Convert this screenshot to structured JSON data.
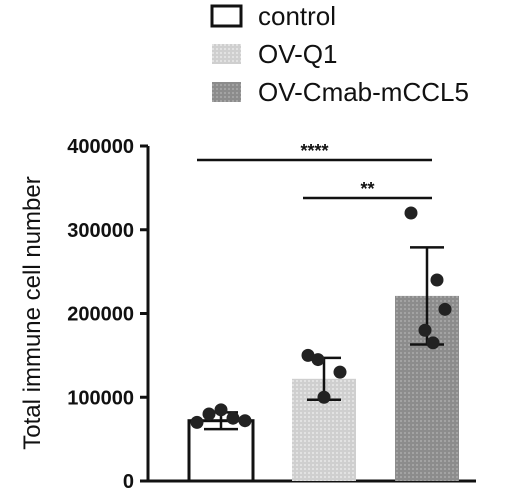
{
  "chart_data": {
    "type": "bar",
    "title": "",
    "xlabel": "",
    "ylabel": "Total immune cell number",
    "ylim": [
      0,
      400000
    ],
    "yticks": [
      0,
      100000,
      200000,
      300000,
      400000
    ],
    "ytick_labels": [
      "0",
      "100000",
      "200000",
      "300000",
      "400000"
    ],
    "grid": false,
    "legend_position": "top",
    "categories": [
      "control",
      "OV-Q1",
      "OV-Cmab-mCCL5"
    ],
    "series": [
      {
        "name": "Total immune cell number",
        "values": [
          72000,
          122000,
          221000
        ],
        "error": [
          10000,
          25000,
          58000
        ],
        "points": [
          [
            70000,
            80000,
            85000,
            75000,
            72000
          ],
          [
            150000,
            130000,
            100000,
            145000
          ],
          [
            320000,
            240000,
            165000,
            205000,
            180000
          ]
        ]
      }
    ],
    "legend": [
      {
        "label": "control",
        "style": "white"
      },
      {
        "label": "OV-Q1",
        "style": "light-gray"
      },
      {
        "label": "OV-Cmab-mCCL5",
        "style": "dark-gray"
      }
    ],
    "significance": [
      {
        "from": 0,
        "to": 2,
        "label": "****"
      },
      {
        "from": 1,
        "to": 2,
        "label": "**"
      }
    ],
    "colors": {
      "control": "#ffffff",
      "ov_q1": "#cfcfcf",
      "ov_cmab": "#8c8c8c",
      "ink": "#111111"
    }
  }
}
